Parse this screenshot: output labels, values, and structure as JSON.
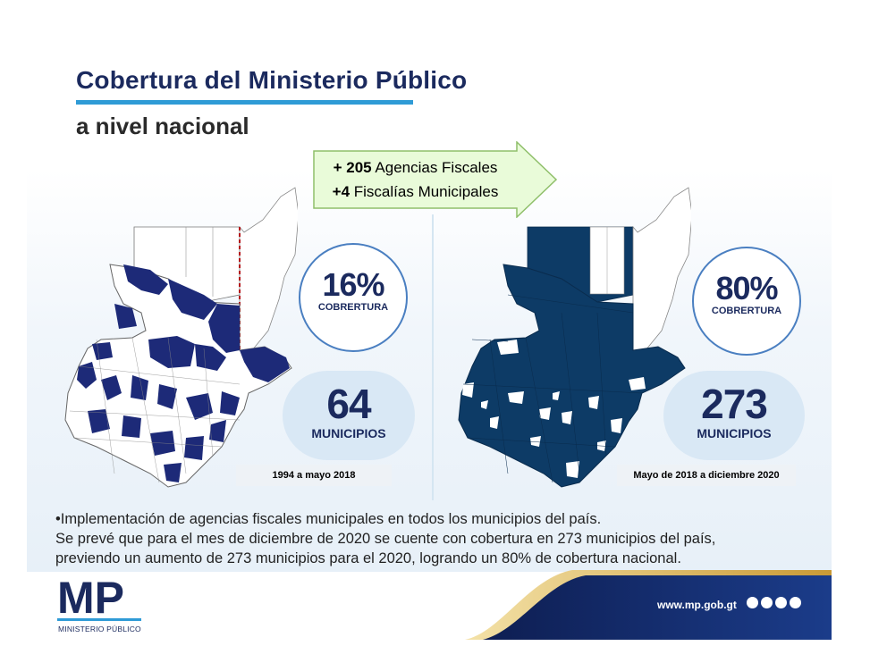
{
  "header": {
    "title": "Cobertura del Ministerio Público",
    "subtitle": "a nivel nacional"
  },
  "arrow": {
    "line1_bold": "+ 205",
    "line1_text": " Agencias Fiscales",
    "line2_bold": "+4",
    "line2_text": " Fiscalías Municipales"
  },
  "before": {
    "percent": "16%",
    "coverage_label": "COBRERTURA",
    "count": "64",
    "count_label": "MUNICIPIOS",
    "period": "1994 a mayo 2018"
  },
  "after": {
    "percent": "80%",
    "coverage_label": "COBRERTURA",
    "count": "273",
    "count_label": "MUNICIPIOS",
    "period": "Mayo de 2018 a diciembre 2020"
  },
  "body": {
    "line1": "•Implementación de agencias fiscales municipales  en todos los municipios del país.",
    "line2": " Se prevé que para el mes de diciembre de 2020 se cuente con cobertura en 273 municipios del país,",
    "line3": "previendo un aumento de 273 municipios para el 2020, logrando un 80% de cobertura nacional."
  },
  "footer": {
    "logo_text": "MP",
    "logo_caption": "MINISTERIO PÚBLICO",
    "website": "www.mp.gob.gt"
  },
  "colors": {
    "navy": "#1b2a5e",
    "map_fill_before": "#1d2a78",
    "map_fill_after": "#0d3b66",
    "accent_blue": "#2f9bd6",
    "arrow_green": "#e9fbd9"
  }
}
